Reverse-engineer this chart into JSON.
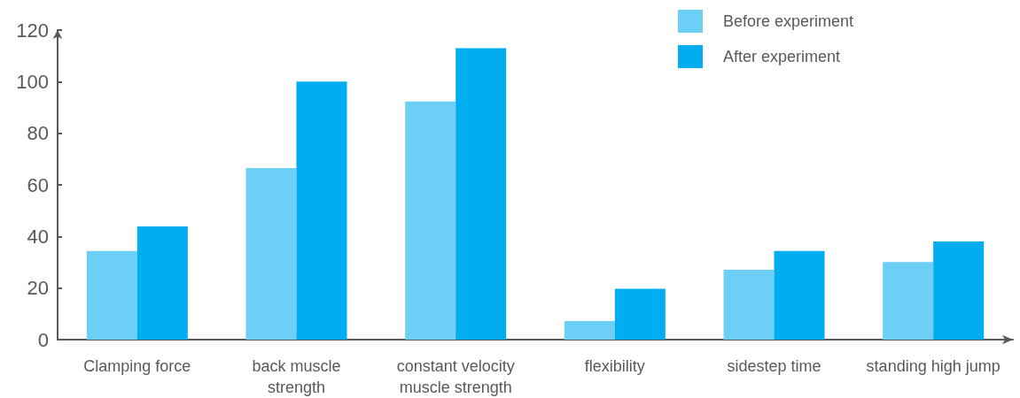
{
  "chart_data": {
    "type": "bar",
    "categories": [
      "Clamping force",
      "back muscle\nstrength",
      "constant velocity\nmuscle strength",
      "flexibility",
      "sidestep time",
      "standing high jump"
    ],
    "series": [
      {
        "name": "Before experiment",
        "color": "#6dcff6",
        "values": [
          34.4,
          66.5,
          92.3,
          7.2,
          27.1,
          30.1
        ]
      },
      {
        "name": "After experiment",
        "color": "#00aeef",
        "values": [
          43.9,
          100,
          113,
          19.7,
          34.4,
          38.1
        ]
      }
    ],
    "ylim": [
      0,
      120
    ],
    "yticks": [
      0,
      20,
      40,
      60,
      80,
      100,
      120
    ],
    "grid": false,
    "legend": "top right"
  }
}
